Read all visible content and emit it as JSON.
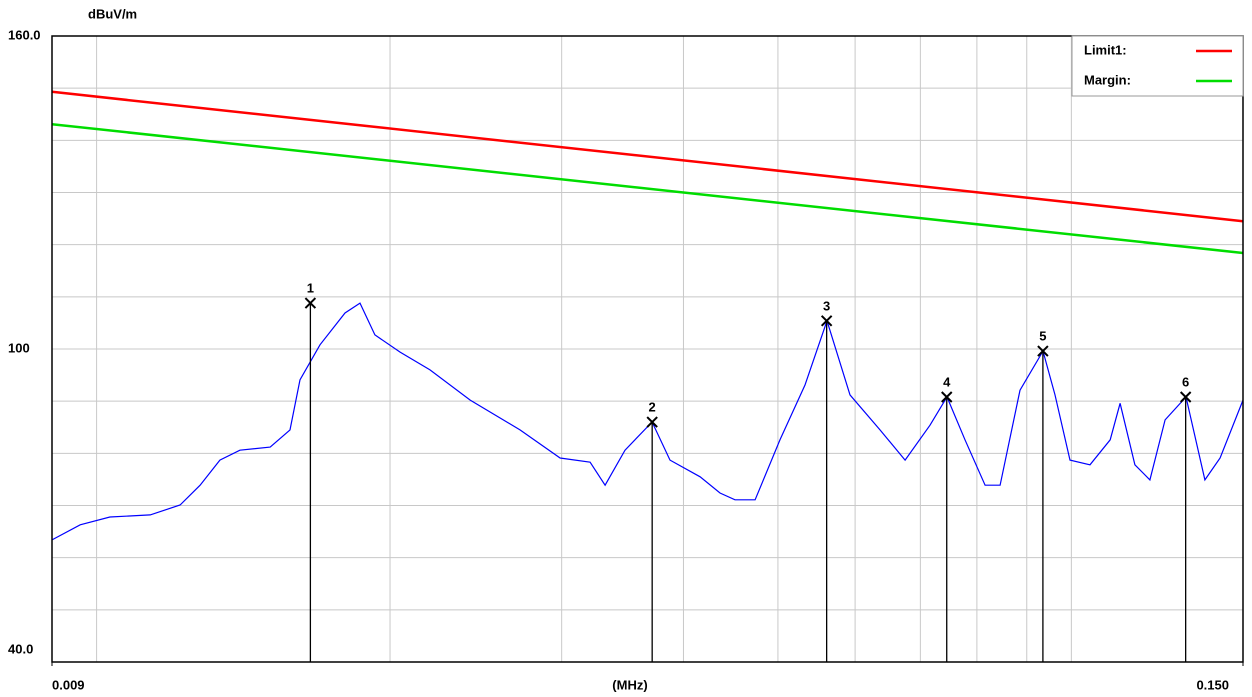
{
  "chart_data": {
    "type": "line",
    "y_label": "dBuV/m",
    "x_label": "(MHz)",
    "xscale": "log",
    "xlim": [
      0.009,
      0.15
    ],
    "xticks": [
      {
        "value": 0.009,
        "label": "0.009"
      },
      {
        "value": 0.15,
        "label": "0.150"
      }
    ],
    "xgrid": [
      0.01,
      0.02,
      0.03,
      0.04,
      0.05,
      0.06,
      0.07,
      0.08,
      0.09,
      0.1
    ],
    "ylim": [
      40,
      160
    ],
    "yticks": [
      {
        "value": 40,
        "label": "40.0"
      },
      100,
      {
        "value": 160,
        "label": "160.0"
      }
    ],
    "ygrid": [
      50,
      60,
      70,
      80,
      90,
      110,
      120,
      130,
      140,
      150
    ],
    "legend": "top-right",
    "series": [
      {
        "name": "Limit1:",
        "color": "#ff0000",
        "x": [
          0.009,
          0.15
        ],
        "values": [
          149.3,
          124.5
        ]
      },
      {
        "name": "Margin:",
        "color": "#00dd00",
        "x": [
          0.009,
          0.15
        ],
        "values": [
          143.1,
          118.4
        ]
      },
      {
        "color": "#0000ff",
        "x": [
          0.009,
          0.00962,
          0.01032,
          0.01135,
          0.01218,
          0.01277,
          0.01338,
          0.01403,
          0.01507,
          0.01579,
          0.01617,
          0.01695,
          0.01798,
          0.01863,
          0.0193,
          0.02048,
          0.02198,
          0.02417,
          0.02719,
          0.02989,
          0.03208,
          0.03324,
          0.03484,
          0.03714,
          0.03875,
          0.0416,
          0.04361,
          0.04518,
          0.04737,
          0.05025,
          0.0533,
          0.05615,
          0.05928,
          0.06364,
          0.06752,
          0.07161,
          0.07455,
          0.07779,
          0.08156,
          0.08451,
          0.08858,
          0.09353,
          0.09621,
          0.09968,
          0.1045,
          0.1096,
          0.1122,
          0.1162,
          0.1204,
          0.1248,
          0.1311,
          0.1371,
          0.1421,
          0.15
        ],
        "values": [
          63.4,
          66.3,
          67.8,
          68.2,
          70.1,
          73.9,
          78.7,
          80.6,
          81.2,
          84.5,
          94.1,
          100.8,
          106.9,
          108.8,
          102.7,
          99.4,
          96.0,
          90.2,
          84.5,
          79.1,
          78.3,
          73.9,
          80.6,
          86.0,
          78.7,
          75.5,
          72.4,
          71.1,
          71.1,
          82.6,
          93.1,
          105.4,
          91.2,
          84.5,
          78.7,
          85.4,
          90.8,
          82.6,
          73.9,
          73.9,
          92.1,
          99.6,
          91.2,
          78.7,
          77.8,
          82.6,
          89.6,
          77.8,
          74.9,
          86.4,
          90.8,
          74.9,
          79.1,
          90.2
        ]
      }
    ],
    "markers": [
      {
        "label": "1",
        "x": 0.01657,
        "value": 108.8
      },
      {
        "label": "2",
        "x": 0.03715,
        "value": 86.0
      },
      {
        "label": "3",
        "x": 0.0561,
        "value": 105.4
      },
      {
        "label": "4",
        "x": 0.0745,
        "value": 90.8
      },
      {
        "label": "5",
        "x": 0.0935,
        "value": 99.6
      },
      {
        "label": "6",
        "x": 0.131,
        "value": 90.8
      }
    ]
  }
}
